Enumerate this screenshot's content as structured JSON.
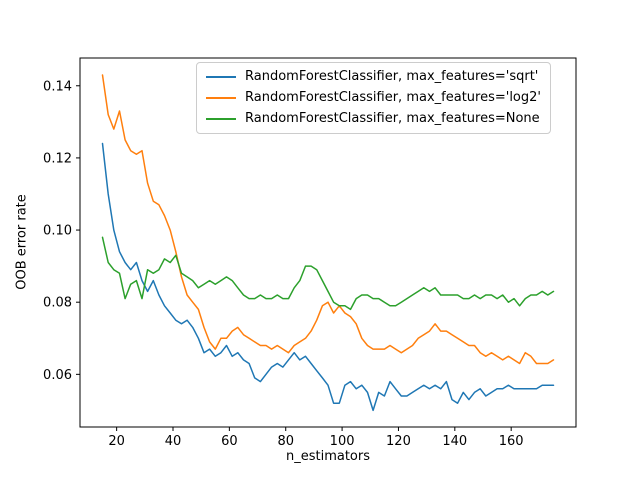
{
  "chart_data": {
    "type": "line",
    "title": "",
    "xlabel": "n_estimators",
    "ylabel": "OOB error rate",
    "xlim": [
      7,
      183
    ],
    "ylim": [
      0.0454,
      0.1477
    ],
    "xticks": [
      20,
      40,
      60,
      80,
      100,
      120,
      140,
      160
    ],
    "yticks": [
      0.06,
      0.08,
      0.1,
      0.12,
      0.14
    ],
    "ytick_labels": [
      "0.06",
      "0.08",
      "0.10",
      "0.12",
      "0.14"
    ],
    "grid": false,
    "legend_position": "upper center",
    "x": [
      15,
      17,
      19,
      21,
      23,
      25,
      27,
      29,
      31,
      33,
      35,
      37,
      39,
      41,
      43,
      45,
      47,
      49,
      51,
      53,
      55,
      57,
      59,
      61,
      63,
      65,
      67,
      69,
      71,
      73,
      75,
      77,
      79,
      81,
      83,
      85,
      87,
      89,
      91,
      93,
      95,
      97,
      99,
      101,
      103,
      105,
      107,
      109,
      111,
      113,
      115,
      117,
      119,
      121,
      123,
      125,
      127,
      129,
      131,
      133,
      135,
      137,
      139,
      141,
      143,
      145,
      147,
      149,
      151,
      153,
      155,
      157,
      159,
      161,
      163,
      165,
      167,
      169,
      171,
      173,
      175
    ],
    "series": [
      {
        "id": "sqrt",
        "label": "RandomForestClassifier, max_features='sqrt'",
        "color": "#1f77b4",
        "values": [
          0.124,
          0.11,
          0.1,
          0.094,
          0.091,
          0.089,
          0.091,
          0.086,
          0.083,
          0.086,
          0.082,
          0.079,
          0.077,
          0.075,
          0.074,
          0.075,
          0.073,
          0.07,
          0.066,
          0.067,
          0.065,
          0.066,
          0.068,
          0.065,
          0.066,
          0.064,
          0.063,
          0.059,
          0.058,
          0.06,
          0.062,
          0.063,
          0.062,
          0.064,
          0.066,
          0.064,
          0.065,
          0.063,
          0.061,
          0.059,
          0.057,
          0.052,
          0.052,
          0.057,
          0.058,
          0.056,
          0.057,
          0.055,
          0.05,
          0.055,
          0.054,
          0.058,
          0.056,
          0.054,
          0.054,
          0.055,
          0.056,
          0.057,
          0.056,
          0.057,
          0.056,
          0.058,
          0.053,
          0.052,
          0.055,
          0.053,
          0.055,
          0.056,
          0.054,
          0.055,
          0.056,
          0.056,
          0.057,
          0.056,
          0.056,
          0.056,
          0.056,
          0.056,
          0.057,
          0.057,
          0.057
        ]
      },
      {
        "id": "log2",
        "label": "RandomForestClassifier, max_features='log2'",
        "color": "#ff7f0e",
        "values": [
          0.143,
          0.132,
          0.128,
          0.133,
          0.125,
          0.122,
          0.121,
          0.122,
          0.113,
          0.108,
          0.107,
          0.104,
          0.1,
          0.094,
          0.087,
          0.082,
          0.08,
          0.078,
          0.073,
          0.069,
          0.067,
          0.07,
          0.07,
          0.072,
          0.073,
          0.071,
          0.07,
          0.069,
          0.068,
          0.068,
          0.067,
          0.068,
          0.067,
          0.066,
          0.068,
          0.069,
          0.07,
          0.072,
          0.075,
          0.079,
          0.08,
          0.077,
          0.079,
          0.077,
          0.076,
          0.074,
          0.07,
          0.068,
          0.067,
          0.067,
          0.067,
          0.068,
          0.067,
          0.066,
          0.067,
          0.068,
          0.07,
          0.071,
          0.072,
          0.074,
          0.072,
          0.072,
          0.071,
          0.07,
          0.069,
          0.068,
          0.068,
          0.066,
          0.065,
          0.066,
          0.065,
          0.064,
          0.065,
          0.064,
          0.063,
          0.066,
          0.065,
          0.063,
          0.063,
          0.063,
          0.064
        ]
      },
      {
        "id": "none",
        "label": "RandomForestClassifier, max_features=None",
        "color": "#2ca02c",
        "values": [
          0.098,
          0.091,
          0.089,
          0.088,
          0.081,
          0.085,
          0.086,
          0.081,
          0.089,
          0.088,
          0.089,
          0.092,
          0.091,
          0.093,
          0.088,
          0.087,
          0.086,
          0.084,
          0.085,
          0.086,
          0.085,
          0.086,
          0.087,
          0.086,
          0.084,
          0.082,
          0.081,
          0.081,
          0.082,
          0.081,
          0.081,
          0.082,
          0.081,
          0.081,
          0.084,
          0.086,
          0.09,
          0.09,
          0.089,
          0.086,
          0.083,
          0.08,
          0.079,
          0.079,
          0.078,
          0.081,
          0.082,
          0.082,
          0.081,
          0.081,
          0.08,
          0.079,
          0.079,
          0.08,
          0.081,
          0.082,
          0.083,
          0.084,
          0.083,
          0.084,
          0.082,
          0.082,
          0.082,
          0.082,
          0.081,
          0.081,
          0.082,
          0.081,
          0.082,
          0.082,
          0.081,
          0.082,
          0.08,
          0.081,
          0.079,
          0.081,
          0.082,
          0.082,
          0.083,
          0.082,
          0.083
        ]
      }
    ]
  }
}
